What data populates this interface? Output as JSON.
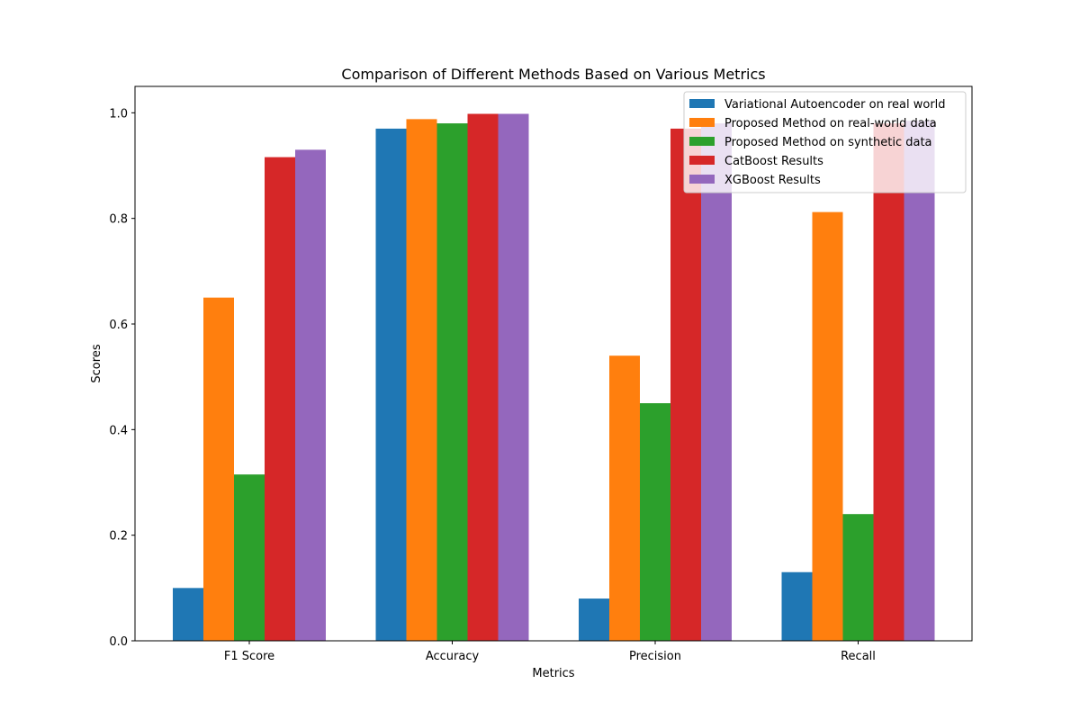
{
  "chart_data": {
    "type": "bar",
    "title": "Comparison of Different Methods Based on Various Metrics",
    "xlabel": "Metrics",
    "ylabel": "Scores",
    "categories": [
      "F1 Score",
      "Accuracy",
      "Precision",
      "Recall"
    ],
    "ylim": [
      0,
      1.05
    ],
    "yticks": [
      0.0,
      0.2,
      0.4,
      0.6,
      0.8,
      1.0
    ],
    "ytick_labels": [
      "0.0",
      "0.2",
      "0.4",
      "0.6",
      "0.8",
      "1.0"
    ],
    "grid": false,
    "legend_position": "top-right",
    "series": [
      {
        "name": "Variational Autoencoder on real world",
        "color": "#1f77b4",
        "values": [
          0.1,
          0.97,
          0.08,
          0.13
        ]
      },
      {
        "name": "Proposed Method on real-world data",
        "color": "#ff7f0e",
        "values": [
          0.65,
          0.988,
          0.54,
          0.812
        ]
      },
      {
        "name": "Proposed Method on synthetic data",
        "color": "#2ca02c",
        "values": [
          0.315,
          0.98,
          0.45,
          0.24
        ]
      },
      {
        "name": "CatBoost Results",
        "color": "#d62728",
        "values": [
          0.916,
          0.998,
          0.97,
          0.98
        ]
      },
      {
        "name": "XGBoost Results",
        "color": "#9467bd",
        "values": [
          0.93,
          0.998,
          0.98,
          0.985
        ]
      }
    ]
  }
}
